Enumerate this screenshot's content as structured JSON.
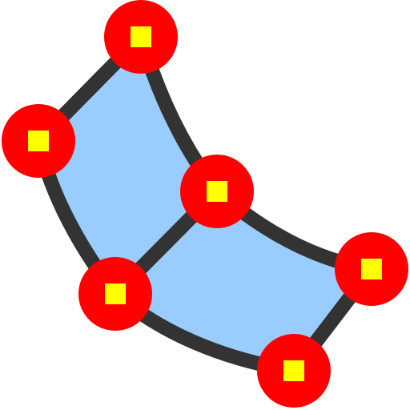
{
  "icon": {
    "name": "bezier-mesh-patch-icon",
    "colors": {
      "fill": "#99ccff",
      "outline": "#333333",
      "node_fill": "#ff0000",
      "node_center": "#ffff00"
    },
    "node_count": 6,
    "patch_count": 2
  }
}
